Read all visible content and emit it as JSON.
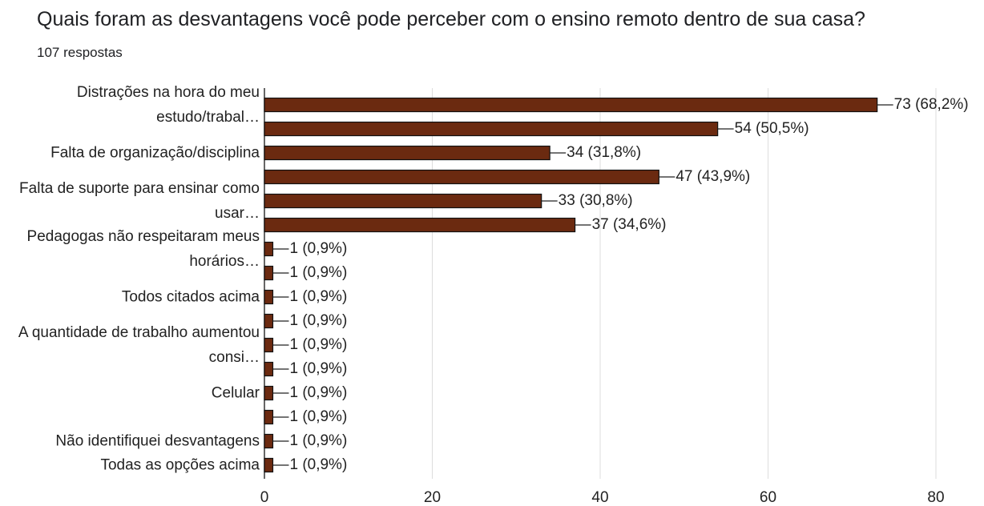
{
  "chart_data": {
    "type": "bar",
    "orientation": "horizontal",
    "title": "Quais foram as desvantagens você pode perceber com o ensino remoto dentro de sua casa?",
    "subtitle": "107 respostas",
    "categories": [
      "Distrações na hora do meu estudo/trabal…",
      null,
      "Falta de organização/disciplina",
      null,
      "Falta de suporte para ensinar como usar…",
      null,
      "Pedagogas não respeitaram meus horários…",
      null,
      "Todos citados acima",
      null,
      "A quantidade de trabalho aumentou consi…",
      null,
      "Celular",
      null,
      "Não identifiquei desvantagens",
      "Todas as opções acima"
    ],
    "values": [
      73,
      54,
      34,
      47,
      33,
      37,
      1,
      1,
      1,
      1,
      1,
      1,
      1,
      1,
      1,
      1
    ],
    "value_labels": [
      "73 (68,2%)",
      "54 (50,5%)",
      "34 (31,8%)",
      "47 (43,9%)",
      "33 (30,8%)",
      "37 (34,6%)",
      "1 (0,9%)",
      "1 (0,9%)",
      "1 (0,9%)",
      "1 (0,9%)",
      "1 (0,9%)",
      "1 (0,9%)",
      "1 (0,9%)",
      "1 (0,9%)",
      "1 (0,9%)",
      "1 (0,9%)"
    ],
    "color": "#6b2a10",
    "xlim": [
      0,
      80
    ],
    "xticks": [
      0,
      20,
      40,
      60,
      80
    ],
    "grid": true
  }
}
